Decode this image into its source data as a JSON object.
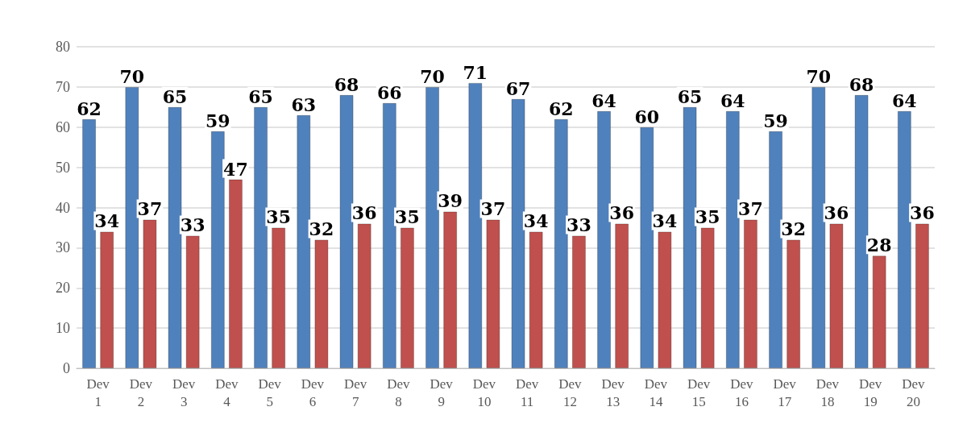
{
  "chart_data": {
    "type": "bar",
    "categories": [
      "Dev 1",
      "Dev 2",
      "Dev 3",
      "Dev 4",
      "Dev 5",
      "Dev 6",
      "Dev 7",
      "Dev 8",
      "Dev 9",
      "Dev 10",
      "Dev 11",
      "Dev 12",
      "Dev 13",
      "Dev 14",
      "Dev 15",
      "Dev 16",
      "Dev 17",
      "Dev 18",
      "Dev 19",
      "Dev 20"
    ],
    "series": [
      {
        "color": "#4f81bd",
        "values": [
          62,
          70,
          65,
          59,
          65,
          63,
          68,
          66,
          70,
          71,
          67,
          62,
          64,
          60,
          65,
          64,
          59,
          70,
          68,
          64
        ]
      },
      {
        "color": "#c0504d",
        "values": [
          34,
          37,
          33,
          47,
          35,
          32,
          36,
          35,
          39,
          37,
          34,
          33,
          36,
          34,
          35,
          37,
          32,
          36,
          28,
          36
        ]
      }
    ],
    "ylim": [
      0,
      80
    ],
    "yticks": [
      0,
      10,
      20,
      30,
      40,
      50,
      60,
      70,
      80
    ],
    "grid": "y",
    "data_labels": true
  }
}
